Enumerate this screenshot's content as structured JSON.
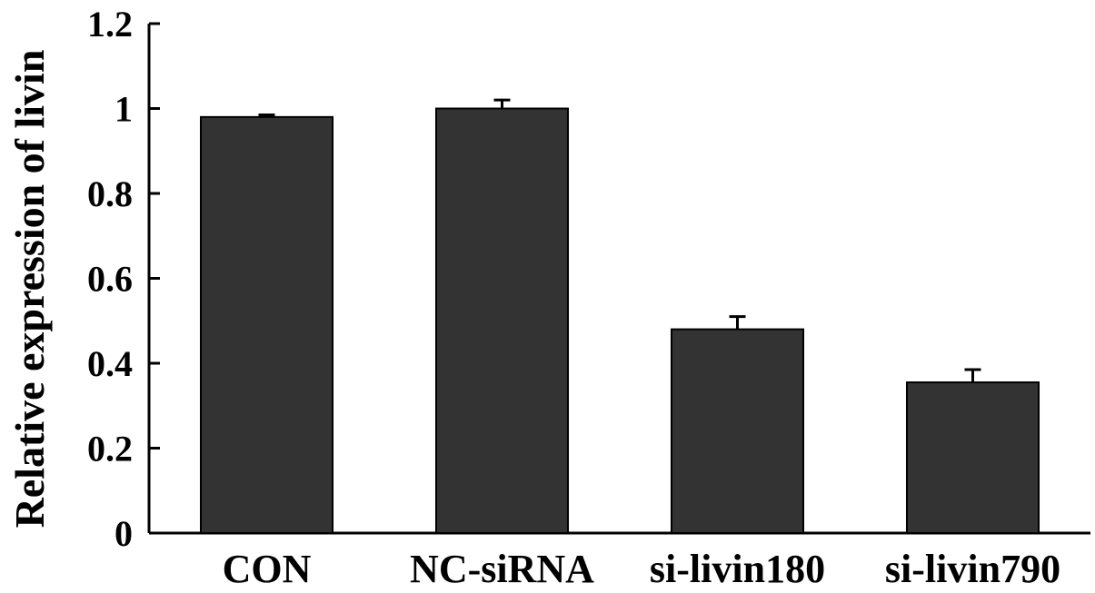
{
  "chart_data": {
    "type": "bar",
    "title": "",
    "xlabel": "",
    "ylabel": "Relative expression of livin",
    "categories": [
      "CON",
      "NC-siRNA",
      "si-livin180",
      "si-livin790"
    ],
    "values": [
      0.98,
      1.0,
      0.48,
      0.355
    ],
    "errors": [
      0.005,
      0.02,
      0.03,
      0.03
    ],
    "ylim": [
      0,
      1.2
    ],
    "yticks": [
      "0",
      "0.2",
      "0.4",
      "0.6",
      "0.8",
      "1",
      "1.2"
    ],
    "grid": false,
    "colors": {
      "bar": "#333333",
      "bar_edge": "#000000",
      "axis": "#000000"
    }
  }
}
